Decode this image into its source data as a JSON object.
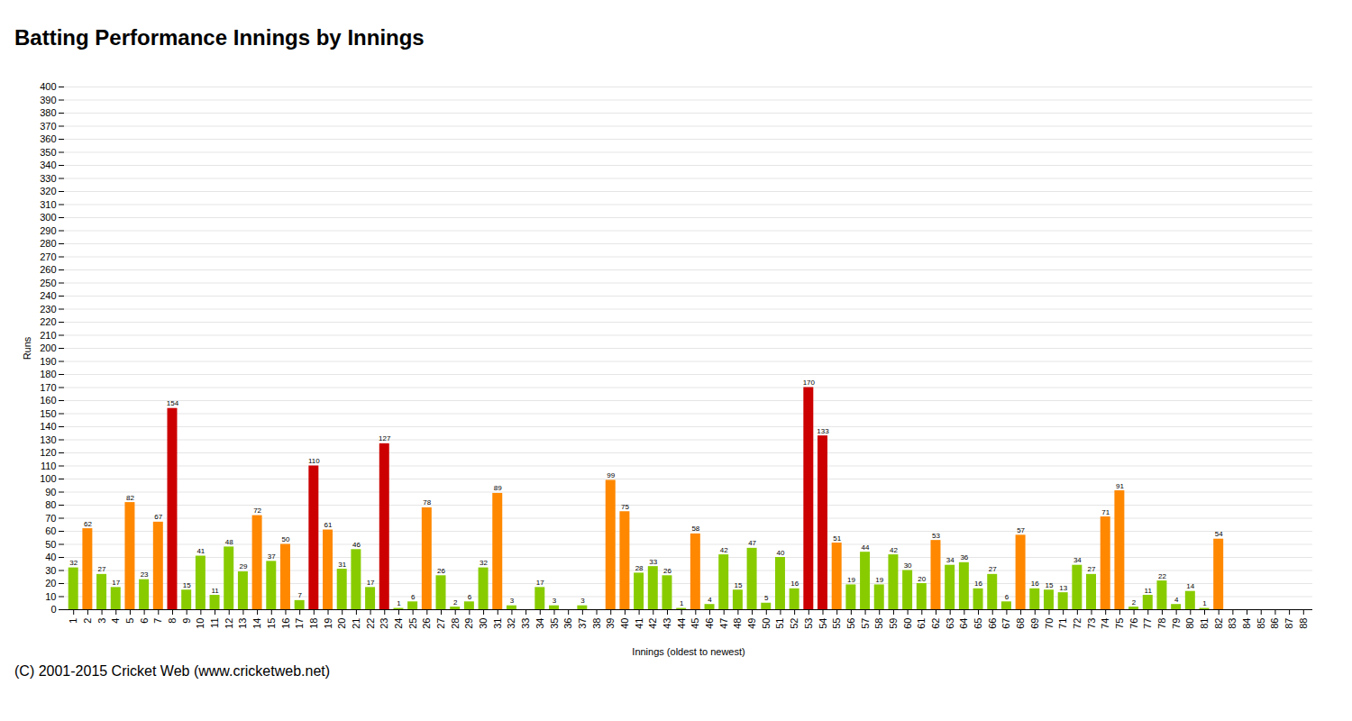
{
  "chart_data": {
    "type": "bar",
    "title": "Batting Performance Innings by Innings",
    "xlabel": "Innings (oldest to newest)",
    "ylabel": "Runs",
    "caption": "(C) 2001-2015 Cricket Web (www.cricketweb.net)",
    "categories": [
      "1",
      "2",
      "3",
      "4",
      "5",
      "6",
      "7",
      "8",
      "9",
      "10",
      "11",
      "12",
      "13",
      "14",
      "15",
      "16",
      "17",
      "18",
      "19",
      "20",
      "21",
      "22",
      "23",
      "24",
      "25",
      "26",
      "27",
      "28",
      "29",
      "30",
      "31",
      "32",
      "33",
      "34",
      "35",
      "36",
      "37",
      "38",
      "39",
      "40",
      "41",
      "42",
      "43",
      "44",
      "45",
      "46",
      "47",
      "48",
      "49",
      "50",
      "51",
      "52",
      "53",
      "54",
      "55",
      "56",
      "57",
      "58",
      "59",
      "60",
      "61",
      "62",
      "63",
      "64",
      "65",
      "66",
      "67",
      "68",
      "69",
      "70",
      "71",
      "72",
      "73",
      "74",
      "75",
      "76",
      "77",
      "78",
      "79",
      "80",
      "81",
      "82",
      "83",
      "84",
      "85",
      "86",
      "87",
      "88"
    ],
    "values": [
      32,
      62,
      27,
      17,
      82,
      23,
      67,
      154,
      15,
      41,
      11,
      48,
      29,
      72,
      37,
      50,
      7,
      110,
      61,
      31,
      46,
      17,
      127,
      1,
      6,
      78,
      26,
      2,
      6,
      32,
      89,
      3,
      0,
      17,
      3,
      0,
      3,
      0,
      99,
      75,
      28,
      33,
      26,
      1,
      58,
      4,
      42,
      15,
      47,
      5,
      40,
      16,
      170,
      133,
      51,
      19,
      44,
      19,
      42,
      30,
      20,
      53,
      34,
      36,
      16,
      27,
      6,
      57,
      16,
      15,
      13,
      34,
      27,
      71,
      91,
      2,
      11,
      22,
      4,
      14,
      1,
      54,
      0,
      0,
      0,
      0,
      0,
      0
    ],
    "value_labels": [
      "32",
      "62",
      "27",
      "17",
      "82",
      "23",
      "67",
      "154",
      "15",
      "41",
      "11",
      "48",
      "29",
      "72",
      "37",
      "50",
      "7",
      "110",
      "61",
      "31",
      "46",
      "17",
      "127",
      "1",
      "6",
      "78",
      "26",
      "2",
      "6",
      "32",
      "89",
      "3",
      null,
      "17",
      "3",
      null,
      "3",
      null,
      "99",
      "75",
      "28",
      "33",
      "26",
      "1",
      "58",
      "4",
      "42",
      "15",
      "47",
      "5",
      "40",
      "16",
      "170",
      "133",
      "51",
      "19",
      "44",
      "19",
      "42",
      "30",
      "20",
      "53",
      "34",
      "36",
      "16",
      "27",
      "6",
      "57",
      "16",
      "15",
      "13",
      "34",
      "27",
      "71",
      "91",
      "2",
      "11",
      "22",
      "4",
      "14",
      "1",
      "54",
      null,
      null,
      null,
      null,
      null,
      null
    ],
    "colors": [
      "#88cc00",
      "#ff8800",
      "#88cc00",
      "#88cc00",
      "#ff8800",
      "#88cc00",
      "#ff8800",
      "#cc0000",
      "#88cc00",
      "#88cc00",
      "#88cc00",
      "#88cc00",
      "#88cc00",
      "#ff8800",
      "#88cc00",
      "#ff8800",
      "#88cc00",
      "#cc0000",
      "#ff8800",
      "#88cc00",
      "#88cc00",
      "#88cc00",
      "#cc0000",
      "#88cc00",
      "#88cc00",
      "#ff8800",
      "#88cc00",
      "#88cc00",
      "#88cc00",
      "#88cc00",
      "#ff8800",
      "#88cc00",
      "#88cc00",
      "#88cc00",
      "#88cc00",
      "#88cc00",
      "#88cc00",
      "#88cc00",
      "#ff8800",
      "#ff8800",
      "#88cc00",
      "#88cc00",
      "#88cc00",
      "#88cc00",
      "#ff8800",
      "#88cc00",
      "#88cc00",
      "#88cc00",
      "#88cc00",
      "#88cc00",
      "#88cc00",
      "#88cc00",
      "#cc0000",
      "#cc0000",
      "#ff8800",
      "#88cc00",
      "#88cc00",
      "#88cc00",
      "#88cc00",
      "#88cc00",
      "#88cc00",
      "#ff8800",
      "#88cc00",
      "#88cc00",
      "#88cc00",
      "#88cc00",
      "#88cc00",
      "#ff8800",
      "#88cc00",
      "#88cc00",
      "#88cc00",
      "#88cc00",
      "#88cc00",
      "#ff8800",
      "#ff8800",
      "#88cc00",
      "#88cc00",
      "#88cc00",
      "#88cc00",
      "#88cc00",
      "#88cc00",
      "#ff8800",
      "#88cc00",
      "#88cc00",
      "#88cc00",
      "#88cc00",
      "#88cc00",
      "#88cc00"
    ],
    "ylim": [
      0,
      400
    ],
    "yticks": [
      0,
      10,
      20,
      30,
      40,
      50,
      60,
      70,
      80,
      90,
      100,
      110,
      120,
      130,
      140,
      150,
      160,
      170,
      180,
      190,
      200,
      210,
      220,
      230,
      240,
      250,
      260,
      270,
      280,
      290,
      300,
      310,
      320,
      330,
      340,
      350,
      360,
      370,
      380,
      390,
      400
    ],
    "grid": true,
    "data_labels": true
  }
}
